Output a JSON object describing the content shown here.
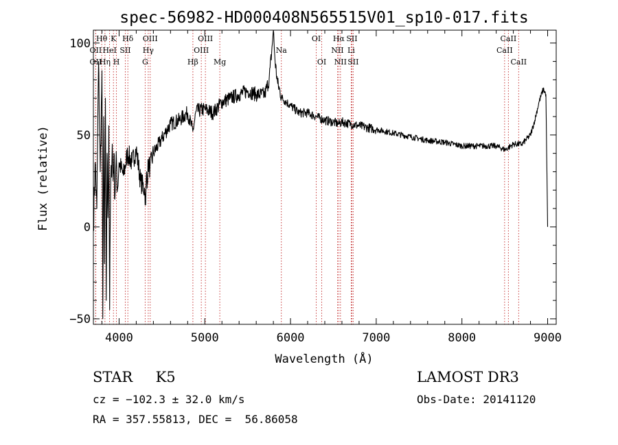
{
  "chart_data": {
    "type": "line",
    "title": "spec-56982-HD000408N565515V01_sp10-017.fits",
    "xlabel": "Wavelength (Å)",
    "ylabel": "Flux (relative)",
    "xlim": [
      3700,
      9100
    ],
    "ylim": [
      -53,
      107
    ],
    "x_ticks": [
      4000,
      5000,
      6000,
      7000,
      8000,
      9000
    ],
    "y_ticks": [
      -50,
      0,
      50,
      100
    ],
    "series": [
      {
        "name": "spectrum",
        "x": [
          3700,
          3720,
          3740,
          3760,
          3780,
          3800,
          3810,
          3820,
          3830,
          3840,
          3850,
          3860,
          3870,
          3880,
          3890,
          3900,
          3910,
          3920,
          3930,
          3940,
          3950,
          3960,
          3970,
          3980,
          4000,
          4050,
          4100,
          4150,
          4200,
          4250,
          4300,
          4310,
          4320,
          4330,
          4340,
          4360,
          4400,
          4500,
          4600,
          4700,
          4800,
          4860,
          4900,
          5000,
          5100,
          5200,
          5300,
          5400,
          5500,
          5600,
          5700,
          5750,
          5780,
          5800,
          5820,
          5850,
          5900,
          5950,
          6000,
          6100,
          6200,
          6300,
          6400,
          6500,
          6563,
          6600,
          6700,
          6800,
          6900,
          7000,
          7200,
          7400,
          7600,
          7800,
          8000,
          8200,
          8400,
          8500,
          8540,
          8600,
          8700,
          8800,
          8850,
          8900,
          8950,
          8980,
          9000
        ],
        "y": [
          0,
          35,
          10,
          90,
          30,
          85,
          -50,
          60,
          -20,
          70,
          -40,
          40,
          5,
          55,
          -45,
          20,
          30,
          45,
          25,
          40,
          15,
          30,
          35,
          20,
          35,
          28,
          40,
          35,
          42,
          25,
          20,
          12,
          30,
          25,
          35,
          32,
          40,
          48,
          56,
          58,
          62,
          52,
          63,
          64,
          62,
          68,
          70,
          72,
          74,
          72,
          72,
          80,
          95,
          107,
          90,
          78,
          70,
          68,
          66,
          62,
          62,
          60,
          58,
          57,
          56,
          57,
          56,
          55,
          54,
          53,
          51,
          49,
          47,
          46,
          44,
          44,
          44,
          42,
          43,
          45,
          45,
          50,
          58,
          68,
          75,
          72,
          0
        ]
      }
    ],
    "spectral_lines": [
      {
        "label": "Hθ",
        "x": 3797,
        "row": 0
      },
      {
        "label": "OII",
        "x": 3727,
        "row": 1
      },
      {
        "label": "OII",
        "x": 3727,
        "row": 2
      },
      {
        "label": "Hη",
        "x": 3835,
        "row": 2
      },
      {
        "label": "HeI",
        "x": 3889,
        "row": 1
      },
      {
        "label": "K",
        "x": 3934,
        "row": 0
      },
      {
        "label": "H",
        "x": 3969,
        "row": 2
      },
      {
        "label": "SII",
        "x": 4072,
        "row": 1
      },
      {
        "label": "Hδ",
        "x": 4102,
        "row": 0
      },
      {
        "label": "OIII",
        "x": 4363,
        "row": 0
      },
      {
        "label": "Hγ",
        "x": 4340,
        "row": 1
      },
      {
        "label": "G",
        "x": 4304,
        "row": 2
      },
      {
        "label": "Hβ",
        "x": 4861,
        "row": 2
      },
      {
        "label": "OIII",
        "x": 4959,
        "row": 1
      },
      {
        "label": "OIII",
        "x": 5007,
        "row": 0
      },
      {
        "label": "Mg",
        "x": 5175,
        "row": 2
      },
      {
        "label": "Na",
        "x": 5893,
        "row": 1
      },
      {
        "label": "OI",
        "x": 6300,
        "row": 0
      },
      {
        "label": "OI",
        "x": 6364,
        "row": 2
      },
      {
        "label": "Hα",
        "x": 6563,
        "row": 0
      },
      {
        "label": "NII",
        "x": 6548,
        "row": 1
      },
      {
        "label": "NII",
        "x": 6583,
        "row": 2
      },
      {
        "label": "Li",
        "x": 6708,
        "row": 1
      },
      {
        "label": "SII",
        "x": 6716,
        "row": 0
      },
      {
        "label": "SII",
        "x": 6731,
        "row": 2
      },
      {
        "label": "CaII",
        "x": 8498,
        "row": 1
      },
      {
        "label": "CaII",
        "x": 8542,
        "row": 0
      },
      {
        "label": "CaII",
        "x": 8662,
        "row": 2
      }
    ],
    "line_color": "#000000",
    "marker_color": "#c02020"
  },
  "info": {
    "classification": "STAR     K5",
    "survey": "LAMOST DR3",
    "redshift": "cz = −102.3 ± 32.0 km/s",
    "obs_date": "Obs-Date: 20141120",
    "coords": "RA = 357.55813, DEC =  56.86058"
  }
}
